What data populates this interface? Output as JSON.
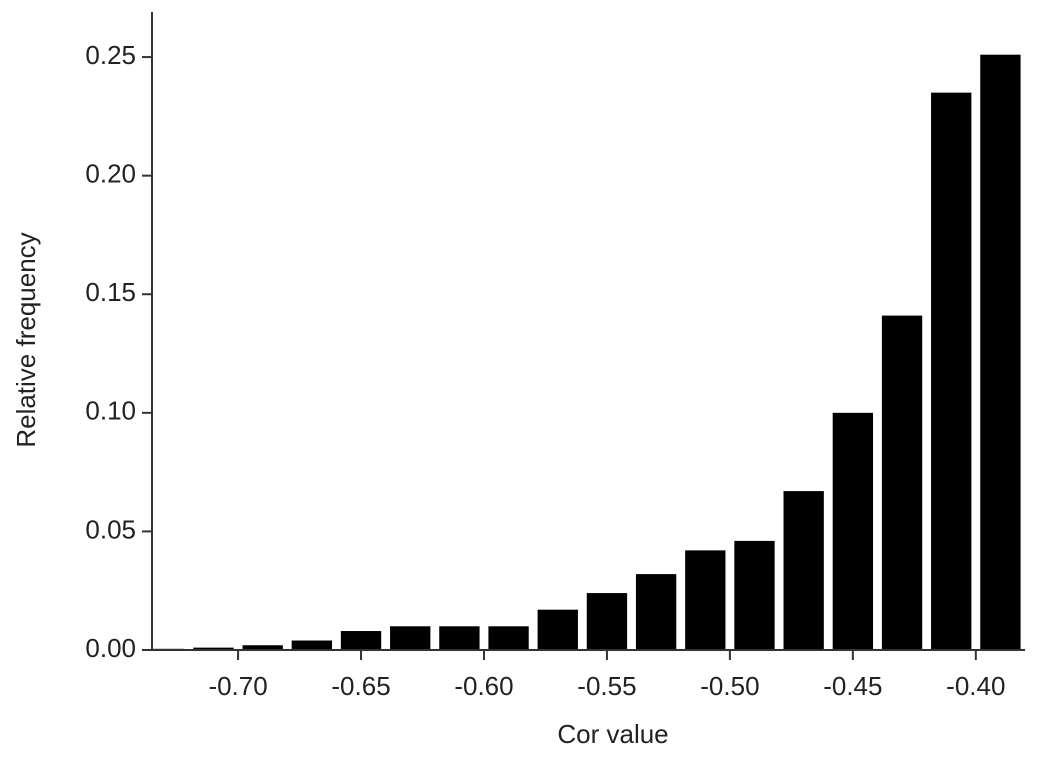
{
  "chart_data": {
    "type": "histogram",
    "xlabel": "Cor value",
    "ylabel": "Relative frequency",
    "bins": [
      -0.74,
      -0.72,
      -0.7,
      -0.68,
      -0.66,
      -0.64,
      -0.62,
      -0.6,
      -0.58,
      -0.56,
      -0.54,
      -0.52,
      -0.5,
      -0.48,
      -0.46,
      -0.44,
      -0.42,
      -0.4,
      -0.38
    ],
    "values": [
      0.0005,
      0.001,
      0.002,
      0.004,
      0.008,
      0.01,
      0.01,
      0.01,
      0.017,
      0.024,
      0.032,
      0.042,
      0.046,
      0.067,
      0.1,
      0.141,
      0.235,
      0.251
    ],
    "color": "#000000",
    "xlim": [
      -0.735,
      -0.38
    ],
    "xticks": [
      {
        "value": -0.7,
        "label": "-0.70"
      },
      -0.65,
      {
        "value": -0.6,
        "label": "-0.60"
      },
      -0.55,
      {
        "value": -0.5,
        "label": "-0.50"
      },
      -0.45,
      {
        "value": -0.4,
        "label": "-0.40"
      }
    ],
    "ylim": [
      0,
      0.269
    ],
    "yticks": [
      {
        "value": 0,
        "label": "0.00"
      },
      0.05,
      {
        "value": 0.1,
        "label": "0.10"
      },
      0.15,
      {
        "value": 0.2,
        "label": "0.20"
      },
      0.25
    ],
    "grid": false
  }
}
